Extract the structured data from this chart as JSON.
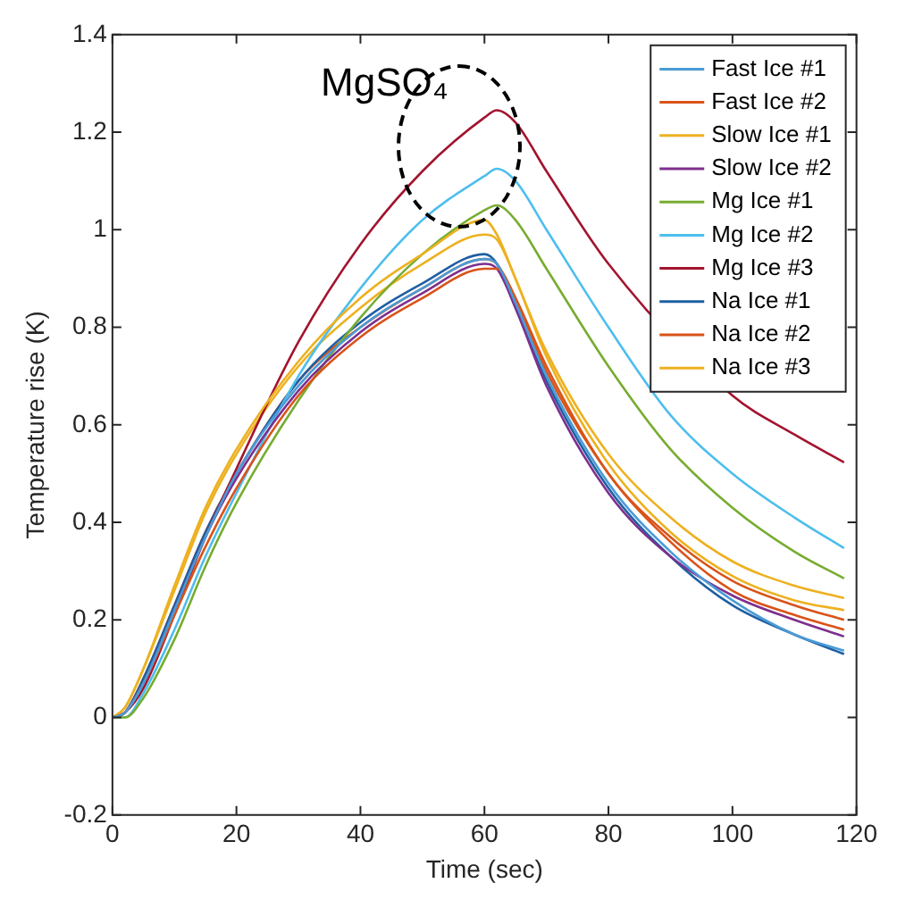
{
  "chart_data": {
    "type": "line",
    "xlabel": "Time (sec)",
    "ylabel": "Temperature rise (K)",
    "annotations": [
      "MgSO₄"
    ],
    "x": [
      0,
      2,
      5,
      10,
      15,
      20,
      30,
      40,
      50,
      60,
      62,
      65,
      70,
      80,
      90,
      100,
      110,
      118
    ],
    "xlim": [
      0,
      120
    ],
    "xticks": [
      0,
      20,
      40,
      60,
      80,
      100,
      120
    ],
    "ylim": [
      -0.2,
      1.4
    ],
    "yticks": [
      -0.2,
      0,
      0.2,
      0.4,
      0.6,
      0.8,
      1,
      1.2,
      1.4
    ],
    "grid": false,
    "legend": "top right",
    "marker": "none",
    "line_style": "solid",
    "series": [
      {
        "name": "Fast Ice #1",
        "color": "#4a9bd6",
        "values": [
          0,
          0.01,
          0.07,
          0.22,
          0.37,
          0.5,
          0.68,
          0.8,
          0.88,
          0.94,
          0.93,
          0.85,
          0.7,
          0.48,
          0.34,
          0.24,
          0.17,
          0.137
        ]
      },
      {
        "name": "Fast Ice #2",
        "color": "#d95319",
        "values": [
          0,
          0.01,
          0.07,
          0.21,
          0.35,
          0.47,
          0.66,
          0.78,
          0.86,
          0.92,
          0.92,
          0.86,
          0.72,
          0.5,
          0.37,
          0.28,
          0.23,
          0.2
        ]
      },
      {
        "name": "Slow Ice #1",
        "color": "#edb120",
        "values": [
          0,
          0.02,
          0.1,
          0.27,
          0.43,
          0.55,
          0.73,
          0.86,
          0.95,
          1.02,
          0.99,
          0.9,
          0.75,
          0.54,
          0.41,
          0.32,
          0.27,
          0.245
        ]
      },
      {
        "name": "Slow Ice #2",
        "color": "#7e2f8e",
        "values": [
          0,
          0.01,
          0.07,
          0.22,
          0.37,
          0.49,
          0.67,
          0.79,
          0.87,
          0.93,
          0.92,
          0.84,
          0.68,
          0.46,
          0.33,
          0.25,
          0.2,
          0.166
        ]
      },
      {
        "name": "Mg Ice #1",
        "color": "#77ac30",
        "values": [
          0,
          0,
          0.04,
          0.16,
          0.31,
          0.44,
          0.65,
          0.82,
          0.95,
          1.04,
          1.05,
          1.02,
          0.92,
          0.72,
          0.55,
          0.43,
          0.34,
          0.285
        ]
      },
      {
        "name": "Mg Ice #2",
        "color": "#4dbeee",
        "values": [
          0,
          0,
          0.05,
          0.18,
          0.33,
          0.46,
          0.7,
          0.88,
          1.02,
          1.11,
          1.125,
          1.1,
          1.0,
          0.8,
          0.62,
          0.5,
          0.41,
          0.347
        ]
      },
      {
        "name": "Mg Ice #3",
        "color": "#a2142f",
        "x": [
          0,
          2,
          5,
          10,
          15,
          20,
          30,
          40,
          50,
          60,
          62,
          65,
          70,
          80,
          100,
          110,
          118
        ],
        "values": [
          0,
          0.01,
          0.06,
          0.21,
          0.37,
          0.51,
          0.77,
          0.97,
          1.12,
          1.23,
          1.245,
          1.22,
          1.12,
          0.93,
          0.66,
          0.58,
          0.523
        ]
      },
      {
        "name": "Na Ice #1",
        "color": "#1f5fa3",
        "values": [
          0,
          0.01,
          0.08,
          0.23,
          0.38,
          0.5,
          0.69,
          0.81,
          0.89,
          0.95,
          0.93,
          0.84,
          0.69,
          0.47,
          0.33,
          0.23,
          0.17,
          0.13
        ]
      },
      {
        "name": "Na Ice #2",
        "color": "#d95319",
        "values": [
          0,
          0.01,
          0.08,
          0.23,
          0.38,
          0.5,
          0.69,
          0.8,
          0.88,
          0.94,
          0.93,
          0.86,
          0.71,
          0.5,
          0.36,
          0.26,
          0.21,
          0.18
        ]
      },
      {
        "name": "Na Ice #3",
        "color": "#edb120",
        "values": [
          0,
          0.02,
          0.1,
          0.26,
          0.42,
          0.54,
          0.72,
          0.84,
          0.93,
          0.99,
          0.98,
          0.9,
          0.74,
          0.52,
          0.38,
          0.29,
          0.24,
          0.22
        ]
      }
    ]
  }
}
